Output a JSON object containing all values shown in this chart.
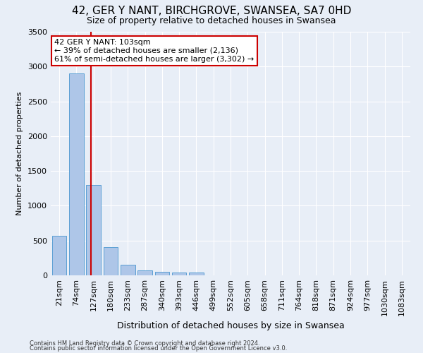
{
  "title": "42, GER Y NANT, BIRCHGROVE, SWANSEA, SA7 0HD",
  "subtitle": "Size of property relative to detached houses in Swansea",
  "xlabel": "Distribution of detached houses by size in Swansea",
  "ylabel": "Number of detached properties",
  "footer_line1": "Contains HM Land Registry data © Crown copyright and database right 2024.",
  "footer_line2": "Contains public sector information licensed under the Open Government Licence v3.0.",
  "bin_labels": [
    "21sqm",
    "74sqm",
    "127sqm",
    "180sqm",
    "233sqm",
    "287sqm",
    "340sqm",
    "393sqm",
    "446sqm",
    "499sqm",
    "552sqm",
    "605sqm",
    "658sqm",
    "711sqm",
    "764sqm",
    "818sqm",
    "871sqm",
    "924sqm",
    "977sqm",
    "1030sqm",
    "1083sqm"
  ],
  "bar_values": [
    570,
    2900,
    1300,
    410,
    155,
    75,
    50,
    45,
    40,
    0,
    0,
    0,
    0,
    0,
    0,
    0,
    0,
    0,
    0,
    0,
    0
  ],
  "bar_color": "#aec6e8",
  "bar_edge_color": "#5a9fd4",
  "property_line_x": 1.85,
  "annotation_text": "42 GER Y NANT: 103sqm\n← 39% of detached houses are smaller (2,136)\n61% of semi-detached houses are larger (3,302) →",
  "annotation_box_color": "#ffffff",
  "annotation_box_edge": "#cc0000",
  "vline_color": "#cc0000",
  "ylim": [
    0,
    3500
  ],
  "yticks": [
    0,
    500,
    1000,
    1500,
    2000,
    2500,
    3000,
    3500
  ],
  "background_color": "#e8eef7",
  "title_fontsize": 11,
  "subtitle_fontsize": 9,
  "ylabel_fontsize": 8,
  "xlabel_fontsize": 9,
  "tick_fontsize": 8,
  "footer_fontsize": 6
}
